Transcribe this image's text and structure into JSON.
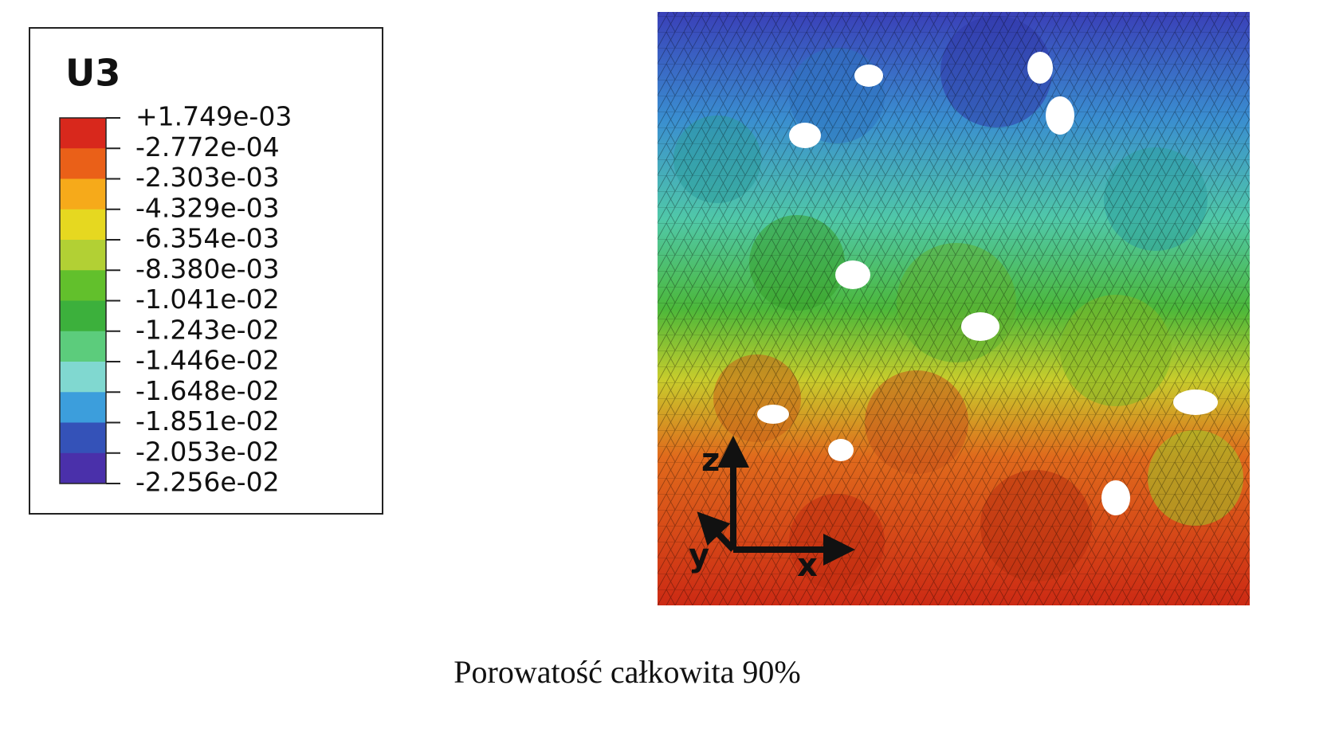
{
  "legend": {
    "title": "U3",
    "labels": [
      "+1.749e-03",
      "-2.772e-04",
      "-2.303e-03",
      "-4.329e-03",
      "-6.354e-03",
      "-8.380e-03",
      "-1.041e-02",
      "-1.243e-02",
      "-1.446e-02",
      "-1.648e-02",
      "-1.851e-02",
      "-2.053e-02",
      "-2.256e-02"
    ],
    "colors": [
      "#d8281c",
      "#ea6018",
      "#f6aa1a",
      "#e6d820",
      "#b2d034",
      "#62c02c",
      "#3cb03c",
      "#5ccc7c",
      "#80d8d0",
      "#3c9edc",
      "#3452b8",
      "#4a30aa"
    ]
  },
  "axes": {
    "z": "z",
    "y": "y",
    "x": "x"
  },
  "caption": "Porowatość całkowita 90%"
}
